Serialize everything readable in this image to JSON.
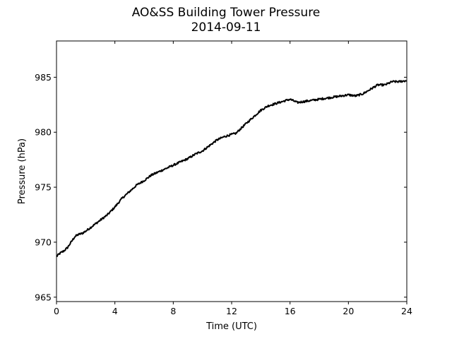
{
  "chart_data": {
    "type": "line",
    "title": "AO&SS Building Tower Pressure",
    "subtitle": "2014-09-11",
    "xlabel": "Time (UTC)",
    "ylabel": "Pressure (hPa)",
    "xlim": [
      0,
      24
    ],
    "ylim": [
      964.6,
      988.3
    ],
    "x_ticks": [
      0,
      4,
      8,
      12,
      16,
      20,
      24
    ],
    "y_ticks": [
      965,
      970,
      975,
      980,
      985
    ],
    "grid": false,
    "legend": "none",
    "line_color": "#000000",
    "series": [
      {
        "x": [
          0,
          0.25,
          0.5,
          0.75,
          1,
          1.25,
          1.5,
          1.75,
          2,
          2.5,
          3,
          3.5,
          4,
          4.5,
          5,
          5.5,
          6,
          6.5,
          7,
          7.5,
          8,
          8.5,
          9,
          9.5,
          10,
          10.5,
          11,
          11.5,
          12,
          12.3,
          12.6,
          13,
          13.5,
          14,
          14.5,
          15,
          15.5,
          16,
          16.5,
          17,
          17.5,
          18,
          18.5,
          19,
          19.5,
          20,
          20.5,
          21,
          21.5,
          22,
          22.5,
          23,
          23.5,
          24
        ],
        "y": [
          968.7,
          969.0,
          969.2,
          969.5,
          970.0,
          970.5,
          970.7,
          970.8,
          971.0,
          971.5,
          972.0,
          972.5,
          973.2,
          974.0,
          974.6,
          975.2,
          975.6,
          976.1,
          976.4,
          976.7,
          977.0,
          977.3,
          977.6,
          978.0,
          978.3,
          978.8,
          979.3,
          979.6,
          979.8,
          979.9,
          980.3,
          980.8,
          981.4,
          982.0,
          982.4,
          982.6,
          982.8,
          983.0,
          982.7,
          982.8,
          982.9,
          983.0,
          983.1,
          983.2,
          983.3,
          983.4,
          983.3,
          983.5,
          983.9,
          984.3,
          984.3,
          984.6,
          984.6,
          984.7
        ]
      }
    ]
  }
}
